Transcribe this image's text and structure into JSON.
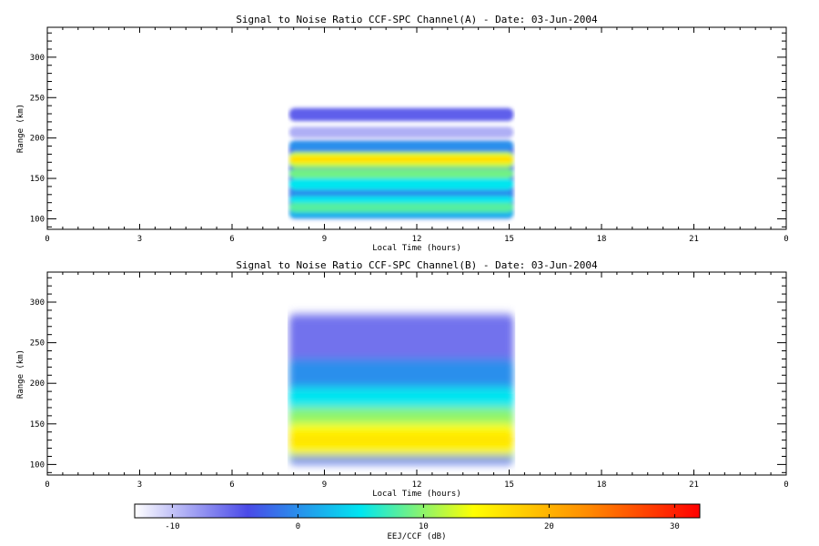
{
  "chart_data": [
    {
      "type": "heatmap",
      "title": "Signal to Noise Ratio CCF-SPC Channel(A) - Date: 03-Jun-2004",
      "xlabel": "Local Time (hours)",
      "ylabel": "Range (km)",
      "xlim": [
        0,
        24
      ],
      "ylim": [
        87,
        337
      ],
      "xticks": [
        "0",
        "3",
        "6",
        "9",
        "12",
        "15",
        "18",
        "21",
        "0"
      ],
      "xtick_values": [
        0,
        3,
        6,
        9,
        12,
        15,
        18,
        21,
        24
      ],
      "yticks": [
        "100",
        "150",
        "200",
        "250",
        "300"
      ],
      "ytick_values": [
        100,
        150,
        200,
        250,
        300
      ],
      "data_time_range": [
        7.8,
        15.2
      ],
      "layers": [
        {
          "range": [
            100,
            197
          ],
          "snr": -4
        },
        {
          "range": [
            101,
            112
          ],
          "snr": 2
        },
        {
          "range": [
            108,
            121
          ],
          "snr": 8
        },
        {
          "range": [
            120,
            128
          ],
          "snr": 5
        },
        {
          "range": [
            128,
            136
          ],
          "snr": 0
        },
        {
          "range": [
            136,
            150
          ],
          "snr": 5
        },
        {
          "range": [
            150,
            162
          ],
          "snr": 9
        },
        {
          "range": [
            163,
            183
          ],
          "snr": 11
        },
        {
          "range": [
            168,
            179
          ],
          "snr": 15
        },
        {
          "range": [
            171,
            176
          ],
          "snr": 17
        },
        {
          "range": [
            184,
            197
          ],
          "snr": 0
        },
        {
          "range": [
            200,
            214
          ],
          "snr": -9
        },
        {
          "range": [
            221,
            237
          ],
          "snr": -5
        }
      ]
    },
    {
      "type": "heatmap",
      "title": "Signal to Noise Ratio CCF-SPC Channel(B) - Date: 03-Jun-2004",
      "xlabel": "Local Time (hours)",
      "ylabel": "Range (km)",
      "xlim": [
        0,
        24
      ],
      "ylim": [
        87,
        337
      ],
      "xticks": [
        "0",
        "3",
        "6",
        "9",
        "12",
        "15",
        "18",
        "21",
        "0"
      ],
      "xtick_values": [
        0,
        3,
        6,
        9,
        12,
        15,
        18,
        21,
        24
      ],
      "yticks": [
        "100",
        "150",
        "200",
        "250",
        "300"
      ],
      "ytick_values": [
        100,
        150,
        200,
        250,
        300
      ],
      "data_time_range": [
        7.8,
        15.2
      ],
      "layers": [
        {
          "range": [
            101,
            285
          ],
          "snr": -6
        },
        {
          "range": [
            102,
            230
          ],
          "snr": 0
        },
        {
          "range": [
            103,
            195
          ],
          "snr": 5
        },
        {
          "range": [
            108,
            170
          ],
          "snr": 10
        },
        {
          "range": [
            112,
            150
          ],
          "snr": 14
        },
        {
          "range": [
            120,
            140
          ],
          "snr": 16
        },
        {
          "range": [
            103,
            110
          ],
          "snr": -4
        }
      ]
    }
  ],
  "colorbar": {
    "label": "EEJ/CCF (dB)",
    "range": [
      -13,
      32
    ],
    "ticks": [
      "-10",
      "0",
      "10",
      "20",
      "30"
    ],
    "tick_values": [
      -10,
      0,
      10,
      20,
      30
    ],
    "colors": [
      "#ffffff",
      "#4a4ae8",
      "#00e6f0",
      "#ffff00",
      "#ff8c00",
      "#ff0000"
    ]
  }
}
